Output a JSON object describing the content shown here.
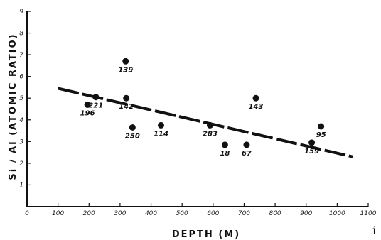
{
  "chart_data": {
    "type": "scatter",
    "xlabel": "DEPTH (M)",
    "ylabel": "Si / Al (ATOMIC RATIO)",
    "xlim": [
      0,
      1100
    ],
    "ylim": [
      0,
      9
    ],
    "x_ticks": [
      "0",
      "100",
      "200",
      "300",
      "400",
      "500",
      "600",
      "700",
      "800",
      "900",
      "1000",
      "1100"
    ],
    "y_ticks": [
      "1",
      "2",
      "3",
      "4",
      "5",
      "6",
      "7",
      "8",
      "9"
    ],
    "points": [
      {
        "label": "196",
        "x": 195,
        "y": 4.7
      },
      {
        "label": "221",
        "x": 222,
        "y": 5.05
      },
      {
        "label": "139",
        "x": 318,
        "y": 6.7
      },
      {
        "label": "142",
        "x": 320,
        "y": 5.0
      },
      {
        "label": "250",
        "x": 340,
        "y": 3.65
      },
      {
        "label": "114",
        "x": 432,
        "y": 3.75
      },
      {
        "label": "283",
        "x": 590,
        "y": 3.75
      },
      {
        "label": "18",
        "x": 638,
        "y": 2.85
      },
      {
        "label": "67",
        "x": 708,
        "y": 2.85
      },
      {
        "label": "143",
        "x": 738,
        "y": 5.0
      },
      {
        "label": "159",
        "x": 918,
        "y": 2.95
      },
      {
        "label": "95",
        "x": 948,
        "y": 3.7
      }
    ],
    "trendline": {
      "x": [
        100,
        1050
      ],
      "y": [
        5.45,
        2.3
      ]
    },
    "corner_mark": "i"
  }
}
